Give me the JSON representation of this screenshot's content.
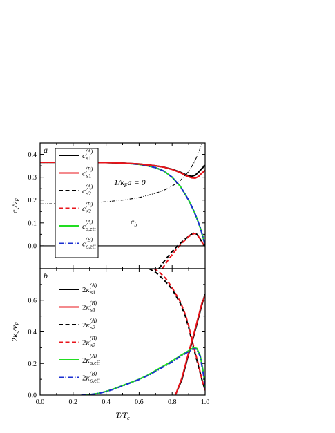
{
  "chart_data": [
    {
      "type": "line",
      "panel_label": "a",
      "annotation": "1/k",
      "annotation_sub": "F",
      "annotation_rest": "a = 0",
      "cb_label": "c",
      "cb_sub": "b",
      "ylabel": {
        "main": "c",
        "sub": "s",
        "rest": "/v",
        "sub2": "F"
      },
      "xlim": [
        0,
        1
      ],
      "ylim": [
        -0.1,
        0.45
      ],
      "yticks": [
        0.0,
        0.1,
        0.2,
        0.3,
        0.4
      ],
      "ytick_labels": [
        "0.0",
        "0.1",
        "0.2",
        "0.3",
        "0.4"
      ],
      "legend": [
        {
          "main": "c",
          "sub": "s1",
          "sup": "(A)",
          "color": "#000000",
          "dash": "solid"
        },
        {
          "main": "c",
          "sub": "s1",
          "sup": "(B)",
          "color": "#e8141b",
          "dash": "solid"
        },
        {
          "main": "c",
          "sub": "s2",
          "sup": "(A)",
          "color": "#000000",
          "dash": "dashed"
        },
        {
          "main": "c",
          "sub": "s2",
          "sup": "(B)",
          "color": "#e8141b",
          "dash": "dashed"
        },
        {
          "main": "c",
          "sub": "s,eff",
          "sup": "(A)",
          "color": "#22dd22",
          "dash": "solid"
        },
        {
          "main": "c",
          "sub": "s,eff",
          "sup": "(B)",
          "color": "#1a2fd0",
          "dash": "dashdot"
        }
      ],
      "series": [
        {
          "color": "#22dd22",
          "dash": "solid",
          "x": [
            0,
            0.1,
            0.2,
            0.3,
            0.4,
            0.5,
            0.6,
            0.65,
            0.7,
            0.75,
            0.8,
            0.85,
            0.9,
            0.93,
            0.95,
            0.97,
            0.99,
            1.0
          ],
          "y": [
            0.365,
            0.365,
            0.365,
            0.365,
            0.364,
            0.362,
            0.356,
            0.35,
            0.342,
            0.327,
            0.3,
            0.26,
            0.2,
            0.155,
            0.12,
            0.08,
            0.03,
            0.0
          ]
        },
        {
          "color": "#1a2fd0",
          "dash": "dashdot",
          "x": [
            0,
            0.1,
            0.2,
            0.3,
            0.4,
            0.5,
            0.6,
            0.65,
            0.7,
            0.75,
            0.8,
            0.85,
            0.9,
            0.93,
            0.95,
            0.97,
            0.99,
            1.0
          ],
          "y": [
            0.365,
            0.365,
            0.365,
            0.365,
            0.364,
            0.362,
            0.356,
            0.35,
            0.342,
            0.327,
            0.3,
            0.26,
            0.2,
            0.155,
            0.12,
            0.08,
            0.03,
            0.0
          ]
        },
        {
          "color": "#000000",
          "dash": "solid",
          "x": [
            0,
            0.2,
            0.4,
            0.5,
            0.6,
            0.7,
            0.75,
            0.8,
            0.85,
            0.88,
            0.9,
            0.92,
            0.94,
            0.96,
            0.98,
            1.0
          ],
          "y": [
            0.365,
            0.365,
            0.364,
            0.362,
            0.358,
            0.35,
            0.344,
            0.335,
            0.322,
            0.312,
            0.306,
            0.304,
            0.309,
            0.322,
            0.338,
            0.352
          ]
        },
        {
          "color": "#e8141b",
          "dash": "solid",
          "x": [
            0,
            0.2,
            0.4,
            0.5,
            0.6,
            0.7,
            0.75,
            0.8,
            0.85,
            0.88,
            0.9,
            0.92,
            0.94,
            0.96,
            0.98,
            1.0
          ],
          "y": [
            0.365,
            0.365,
            0.364,
            0.362,
            0.358,
            0.35,
            0.344,
            0.334,
            0.32,
            0.308,
            0.302,
            0.297,
            0.296,
            0.303,
            0.318,
            0.33
          ]
        },
        {
          "color": "#000000",
          "dash": "dashed",
          "x": [
            0.72,
            0.76,
            0.8,
            0.84,
            0.88,
            0.91,
            0.93,
            0.95,
            0.97,
            0.99,
            1.0
          ],
          "y": [
            -0.1,
            -0.06,
            -0.025,
            0.005,
            0.03,
            0.047,
            0.055,
            0.05,
            0.03,
            0.005,
            0.0
          ]
        },
        {
          "color": "#e8141b",
          "dash": "dashed",
          "x": [
            0.74,
            0.78,
            0.82,
            0.86,
            0.9,
            0.92,
            0.94,
            0.95,
            0.97,
            0.99,
            1.0
          ],
          "y": [
            -0.1,
            -0.058,
            -0.02,
            0.012,
            0.04,
            0.05,
            0.054,
            0.05,
            0.03,
            0.005,
            0.0
          ]
        },
        {
          "color": "#000000",
          "dash": "solid",
          "x": [
            0,
            1
          ],
          "y": [
            0,
            0
          ]
        },
        {
          "color": "#000000",
          "dash": "dashdotdot",
          "x": [
            0,
            0.1,
            0.2,
            0.3,
            0.4,
            0.5,
            0.6,
            0.7,
            0.75,
            0.8,
            0.85,
            0.9,
            0.93,
            0.96,
            0.98
          ],
          "y": [
            0.183,
            0.184,
            0.186,
            0.188,
            0.193,
            0.2,
            0.211,
            0.23,
            0.243,
            0.261,
            0.286,
            0.325,
            0.36,
            0.405,
            0.45
          ]
        }
      ]
    },
    {
      "type": "line",
      "panel_label": "b",
      "ylabel": {
        "pre": "2",
        "main": "κ",
        "sub": "s",
        "rest": "/v",
        "sub2": "F"
      },
      "xlabel": {
        "main": "T/T",
        "sub": "c"
      },
      "xlim": [
        0,
        1
      ],
      "ylim": [
        0,
        0.8
      ],
      "xticks": [
        0.0,
        0.2,
        0.4,
        0.6,
        0.8,
        1.0
      ],
      "xtick_labels": [
        "0.0",
        "0.2",
        "0.4",
        "0.6",
        "0.8",
        "1.0"
      ],
      "yticks": [
        0.0,
        0.2,
        0.4,
        0.6
      ],
      "ytick_labels": [
        "0.0",
        "0.2",
        "0.4",
        "0.6"
      ],
      "legend": [
        {
          "pre": "2",
          "main": "κ",
          "sub": "s1",
          "sup": "(A)",
          "color": "#000000",
          "dash": "solid"
        },
        {
          "pre": "2",
          "main": "κ",
          "sub": "s1",
          "sup": "(B)",
          "color": "#e8141b",
          "dash": "solid"
        },
        {
          "pre": "2",
          "main": "κ",
          "sub": "s2",
          "sup": "(A)",
          "color": "#000000",
          "dash": "dashed"
        },
        {
          "pre": "2",
          "main": "κ",
          "sub": "s2",
          "sup": "(B)",
          "color": "#e8141b",
          "dash": "dashed"
        },
        {
          "pre": "2",
          "main": "κ",
          "sub": "s,eff",
          "sup": "(A)",
          "color": "#22dd22",
          "dash": "solid"
        },
        {
          "pre": "2",
          "main": "κ",
          "sub": "s,eff",
          "sup": "(B)",
          "color": "#1a2fd0",
          "dash": "dashdot"
        }
      ],
      "series": [
        {
          "color": "#000000",
          "dash": "dashed",
          "x": [
            0.66,
            0.7,
            0.75,
            0.8,
            0.85,
            0.88,
            0.9,
            0.92,
            0.94,
            0.96,
            0.98,
            1.0
          ],
          "y": [
            0.8,
            0.777,
            0.73,
            0.67,
            0.58,
            0.5,
            0.43,
            0.34,
            0.26,
            0.18,
            0.1,
            0.03
          ]
        },
        {
          "color": "#e8141b",
          "dash": "dashed",
          "x": [
            0.69,
            0.72,
            0.76,
            0.8,
            0.85,
            0.88,
            0.9,
            0.92,
            0.94,
            0.96,
            0.98,
            1.0
          ],
          "y": [
            0.8,
            0.78,
            0.74,
            0.68,
            0.59,
            0.51,
            0.44,
            0.35,
            0.27,
            0.19,
            0.1,
            0.03
          ]
        },
        {
          "color": "#000000",
          "dash": "solid",
          "x": [
            0.82,
            0.86,
            0.9,
            0.93,
            0.96,
            0.98,
            1.0
          ],
          "y": [
            0.0,
            0.1,
            0.26,
            0.37,
            0.49,
            0.57,
            0.64
          ]
        },
        {
          "color": "#e8141b",
          "dash": "solid",
          "x": [
            0.82,
            0.86,
            0.9,
            0.93,
            0.96,
            0.98,
            1.0
          ],
          "y": [
            0.0,
            0.11,
            0.27,
            0.38,
            0.5,
            0.58,
            0.63
          ]
        },
        {
          "color": "#22dd22",
          "dash": "solid",
          "x": [
            0.25,
            0.3,
            0.35,
            0.4,
            0.45,
            0.5,
            0.55,
            0.6,
            0.65,
            0.7,
            0.75,
            0.8,
            0.85,
            0.9,
            0.93,
            0.95,
            0.97,
            0.99,
            1.0
          ],
          "y": [
            0.0,
            0.003,
            0.01,
            0.023,
            0.04,
            0.06,
            0.08,
            0.1,
            0.125,
            0.155,
            0.185,
            0.215,
            0.25,
            0.28,
            0.3,
            0.295,
            0.25,
            0.14,
            0.05
          ]
        },
        {
          "color": "#1a2fd0",
          "dash": "dashdot",
          "x": [
            0.25,
            0.3,
            0.35,
            0.4,
            0.45,
            0.5,
            0.55,
            0.6,
            0.65,
            0.7,
            0.75,
            0.8,
            0.85,
            0.9,
            0.93,
            0.95,
            0.97,
            0.99,
            1.0
          ],
          "y": [
            0.0,
            0.003,
            0.01,
            0.022,
            0.038,
            0.058,
            0.078,
            0.098,
            0.122,
            0.15,
            0.18,
            0.21,
            0.244,
            0.275,
            0.293,
            0.29,
            0.245,
            0.13,
            0.04
          ]
        }
      ]
    }
  ]
}
